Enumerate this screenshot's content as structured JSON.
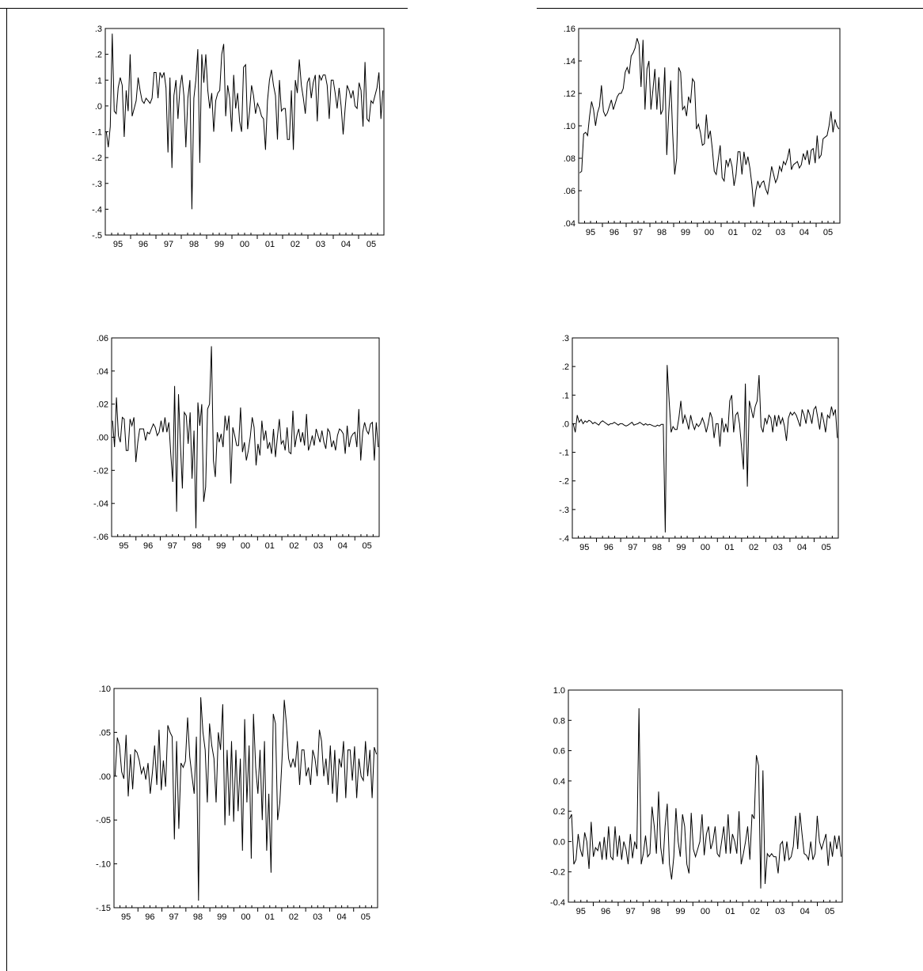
{
  "chart_data": [
    {
      "type": "line",
      "title": "",
      "xlabel": "",
      "ylabel": "",
      "ylim": [
        -0.5,
        0.3
      ],
      "y_ticks": [
        ".3",
        ".2",
        ".1",
        ".0",
        "-.1",
        "-.2",
        "-.3",
        "-.4",
        "-.5"
      ],
      "y_tick_values": [
        0.3,
        0.2,
        0.1,
        0.0,
        -0.1,
        -0.2,
        -0.3,
        -0.4,
        -0.5
      ],
      "x_labels": [
        "95",
        "96",
        "97",
        "98",
        "99",
        "00",
        "01",
        "02",
        "03",
        "04",
        "05"
      ],
      "series": [
        {
          "values": [
            -0.1,
            -0.16,
            -0.08,
            0.28,
            -0.02,
            -0.03,
            0.07,
            0.11,
            0.08,
            -0.12,
            0.06,
            -0.02,
            0.2,
            -0.04,
            -0.01,
            0.02,
            0.11,
            0.06,
            0.02,
            0.01,
            0.03,
            0.02,
            0.01,
            0.03,
            0.13,
            0.13,
            0.03,
            0.13,
            0.11,
            0.13,
            0.07,
            -0.18,
            0.11,
            -0.24,
            0.04,
            0.1,
            -0.05,
            0.07,
            0.12,
            0.04,
            -0.16,
            0.03,
            0.1,
            -0.4,
            0.03,
            0.1,
            0.22,
            -0.22,
            0.2,
            0.09,
            0.2,
            0.06,
            -0.01,
            0.05,
            -0.1,
            0.02,
            0.05,
            0.06,
            0.2,
            0.24,
            -0.04,
            0.08,
            0.03,
            -0.1,
            0.12,
            -0.01,
            0.05,
            -0.06,
            -0.1,
            0.15,
            0.16,
            -0.09,
            -0.02,
            0.08,
            0.04,
            -0.03,
            0.01,
            -0.01,
            -0.04,
            -0.05,
            -0.17,
            0.02,
            0.1,
            0.14,
            0.08,
            0.04,
            -0.13,
            0.1,
            -0.02,
            -0.01,
            -0.01,
            -0.13,
            -0.13,
            0.06,
            -0.17,
            0.1,
            0.05,
            0.18,
            0.08,
            0.03,
            -0.03,
            0.09,
            0.11,
            0.03,
            0.09,
            0.12,
            -0.06,
            0.12,
            0.1,
            0.12,
            0.12,
            0.08,
            -0.05,
            0.1,
            0.1,
            0.05,
            -0.01,
            0.07,
            0.0,
            -0.11,
            -0.01,
            0.08,
            0.06,
            0.03,
            0.06,
            0.0,
            -0.01,
            0.09,
            0.06,
            -0.08,
            0.17,
            -0.05,
            -0.06,
            0.02,
            0.01,
            0.04,
            0.07,
            0.13,
            -0.05,
            0.06
          ]
        }
      ]
    },
    {
      "type": "line",
      "title": "",
      "xlabel": "",
      "ylabel": "",
      "ylim": [
        0.04,
        0.16
      ],
      "y_ticks": [
        ".16",
        ".14",
        ".12",
        ".10",
        ".08",
        ".06",
        ".04"
      ],
      "y_tick_values": [
        0.16,
        0.14,
        0.12,
        0.1,
        0.08,
        0.06,
        0.04
      ],
      "x_labels": [
        "95",
        "96",
        "97",
        "98",
        "99",
        "00",
        "01",
        "02",
        "03",
        "04",
        "05"
      ],
      "series": [
        {
          "values": [
            0.071,
            0.072,
            0.095,
            0.096,
            0.094,
            0.106,
            0.115,
            0.11,
            0.1,
            0.108,
            0.112,
            0.125,
            0.109,
            0.106,
            0.108,
            0.112,
            0.116,
            0.11,
            0.114,
            0.118,
            0.12,
            0.12,
            0.123,
            0.133,
            0.136,
            0.132,
            0.143,
            0.145,
            0.148,
            0.154,
            0.15,
            0.124,
            0.153,
            0.11,
            0.135,
            0.14,
            0.11,
            0.122,
            0.135,
            0.11,
            0.13,
            0.107,
            0.11,
            0.136,
            0.082,
            0.108,
            0.128,
            0.095,
            0.07,
            0.08,
            0.136,
            0.133,
            0.11,
            0.112,
            0.106,
            0.118,
            0.114,
            0.129,
            0.127,
            0.098,
            0.101,
            0.096,
            0.088,
            0.089,
            0.107,
            0.092,
            0.097,
            0.086,
            0.072,
            0.07,
            0.079,
            0.088,
            0.068,
            0.066,
            0.079,
            0.075,
            0.08,
            0.075,
            0.063,
            0.07,
            0.084,
            0.084,
            0.07,
            0.084,
            0.076,
            0.081,
            0.074,
            0.064,
            0.05,
            0.06,
            0.066,
            0.062,
            0.065,
            0.066,
            0.061,
            0.058,
            0.066,
            0.075,
            0.07,
            0.065,
            0.068,
            0.075,
            0.072,
            0.078,
            0.076,
            0.08,
            0.086,
            0.073,
            0.076,
            0.077,
            0.078,
            0.074,
            0.076,
            0.083,
            0.079,
            0.085,
            0.076,
            0.085,
            0.086,
            0.077,
            0.094,
            0.08,
            0.082,
            0.092,
            0.093,
            0.094,
            0.1,
            0.109,
            0.096,
            0.104,
            0.1,
            0.098
          ]
        }
      ]
    },
    {
      "type": "line",
      "title": "",
      "xlabel": "",
      "ylabel": "",
      "ylim": [
        -0.06,
        0.06
      ],
      "y_ticks": [
        ".06",
        ".04",
        ".02",
        ".00",
        "-.02",
        "-.04",
        "-.06"
      ],
      "y_tick_values": [
        0.06,
        0.04,
        0.02,
        0.0,
        -0.02,
        -0.04,
        -0.06
      ],
      "x_labels": [
        "95",
        "96",
        "97",
        "98",
        "99",
        "00",
        "01",
        "02",
        "03",
        "04",
        "05"
      ],
      "series": [
        {
          "values": [
            0.01,
            -0.006,
            0.024,
            0.001,
            -0.003,
            0.012,
            0.011,
            -0.008,
            -0.008,
            0.011,
            0.007,
            0.012,
            -0.015,
            -0.003,
            0.005,
            0.005,
            0.005,
            -0.002,
            0.003,
            0.002,
            0.005,
            0.008,
            0.006,
            0.001,
            0.003,
            0.01,
            0.003,
            0.012,
            0.003,
            0.009,
            -0.01,
            -0.027,
            0.031,
            -0.045,
            0.026,
            -0.004,
            -0.031,
            0.015,
            0.013,
            -0.004,
            0.015,
            -0.025,
            0.004,
            -0.055,
            0.021,
            0.007,
            0.02,
            -0.039,
            -0.03,
            0.017,
            0.02,
            0.055,
            -0.014,
            -0.024,
            0.003,
            -0.003,
            0.002,
            -0.006,
            0.013,
            0.004,
            0.013,
            -0.028,
            0.006,
            0.001,
            -0.005,
            -0.005,
            0.018,
            -0.009,
            -0.003,
            -0.014,
            -0.008,
            0.0,
            0.012,
            0.006,
            -0.017,
            -0.004,
            -0.011,
            0.01,
            -0.002,
            0.004,
            -0.007,
            -0.003,
            -0.01,
            0.005,
            -0.012,
            0.0,
            0.011,
            -0.004,
            -0.002,
            -0.008,
            0.006,
            -0.009,
            -0.01,
            0.016,
            -0.006,
            0.001,
            0.005,
            -0.003,
            0.003,
            -0.005,
            0.014,
            -0.008,
            -0.004,
            0.001,
            -0.005,
            0.005,
            0.001,
            -0.003,
            0.004,
            -0.003,
            -0.007,
            0.005,
            0.003,
            -0.006,
            -0.002,
            -0.008,
            0.001,
            0.005,
            0.004,
            0.002,
            -0.01,
            0.007,
            -0.006,
            0.0,
            0.002,
            0.003,
            -0.006,
            0.017,
            -0.014,
            0.003,
            0.009,
            0.004,
            0.002,
            0.008,
            0.009,
            -0.014,
            0.009,
            -0.006
          ]
        }
      ]
    },
    {
      "type": "line",
      "title": "",
      "xlabel": "",
      "ylabel": "",
      "ylim": [
        -0.4,
        0.3
      ],
      "y_ticks": [
        ".3",
        ".2",
        ".1",
        ".0",
        "-.1",
        "-.2",
        "-.3",
        "-.4"
      ],
      "y_tick_values": [
        0.3,
        0.2,
        0.1,
        0.0,
        -0.1,
        -0.2,
        -0.3,
        -0.4
      ],
      "x_labels": [
        "95",
        "96",
        "97",
        "98",
        "99",
        "00",
        "01",
        "02",
        "03",
        "04",
        "05"
      ],
      "series": [
        {
          "values": [
            0.0,
            -0.03,
            0.03,
            0.005,
            0.015,
            0.0,
            0.01,
            0.005,
            0.012,
            0.008,
            0.0,
            0.005,
            0.0,
            -0.005,
            0.005,
            0.01,
            0.005,
            0.0,
            -0.005,
            0.0,
            0.0,
            0.005,
            0.0,
            -0.005,
            0.0,
            0.0,
            -0.005,
            -0.008,
            -0.005,
            0.0,
            0.005,
            -0.005,
            -0.002,
            0.0,
            0.005,
            0.0,
            -0.005,
            0.0,
            -0.005,
            -0.002,
            -0.005,
            -0.008,
            -0.01,
            -0.005,
            -0.008,
            -0.002,
            -0.002,
            -0.38,
            0.205,
            0.08,
            -0.03,
            -0.01,
            -0.02,
            -0.02,
            0.02,
            0.08,
            0.0,
            0.03,
            0.01,
            -0.02,
            0.03,
            0.0,
            -0.02,
            0.0,
            -0.01,
            0.0,
            0.02,
            0.0,
            -0.03,
            0.0,
            0.04,
            0.02,
            -0.05,
            0.0,
            0.0,
            -0.08,
            0.02,
            -0.03,
            0.0,
            -0.03,
            0.08,
            0.1,
            -0.03,
            0.03,
            0.04,
            0.0,
            -0.08,
            -0.16,
            0.14,
            -0.22,
            0.08,
            0.05,
            0.02,
            0.06,
            0.08,
            0.17,
            -0.01,
            -0.03,
            0.02,
            0.0,
            0.03,
            0.02,
            -0.03,
            0.03,
            -0.01,
            0.03,
            0.0,
            0.02,
            -0.01,
            -0.06,
            0.02,
            0.04,
            0.03,
            0.04,
            0.03,
            0.01,
            -0.01,
            0.05,
            0.03,
            0.0,
            0.05,
            0.03,
            0.0,
            0.05,
            0.06,
            0.02,
            -0.02,
            0.04,
            0.01,
            -0.03,
            0.03,
            0.02,
            0.06,
            0.03,
            0.05,
            -0.05
          ]
        }
      ]
    },
    {
      "type": "line",
      "title": "",
      "xlabel": "",
      "ylabel": "",
      "ylim": [
        -0.15,
        0.1
      ],
      "y_ticks": [
        ".10",
        ".05",
        ".00",
        "-.05",
        "-.10",
        "-.15"
      ],
      "y_tick_values": [
        0.1,
        0.05,
        0.0,
        -0.05,
        -0.1,
        -0.15
      ],
      "x_labels": [
        "95",
        "96",
        "97",
        "98",
        "99",
        "00",
        "01",
        "02",
        "03",
        "04",
        "05"
      ],
      "series": [
        {
          "values": [
            0.0,
            0.044,
            0.035,
            0.005,
            -0.003,
            0.047,
            -0.023,
            0.025,
            -0.015,
            0.03,
            0.027,
            0.018,
            0.003,
            0.01,
            -0.004,
            0.015,
            -0.02,
            0.005,
            0.035,
            -0.01,
            0.053,
            -0.016,
            0.018,
            -0.012,
            0.058,
            0.05,
            0.045,
            -0.072,
            0.04,
            -0.06,
            0.015,
            0.01,
            0.017,
            0.067,
            0.022,
            0.0,
            -0.02,
            0.045,
            -0.142,
            0.09,
            0.05,
            0.03,
            -0.03,
            0.06,
            0.035,
            0.02,
            -0.03,
            0.05,
            0.03,
            0.082,
            -0.056,
            0.03,
            -0.045,
            0.04,
            -0.052,
            0.03,
            -0.04,
            0.02,
            -0.085,
            0.065,
            -0.03,
            0.035,
            -0.094,
            0.071,
            0.01,
            -0.02,
            0.03,
            -0.05,
            0.04,
            -0.085,
            -0.02,
            -0.11,
            0.071,
            0.06,
            -0.05,
            -0.03,
            0.02,
            0.087,
            0.06,
            0.02,
            0.01,
            0.02,
            0.01,
            0.04,
            -0.01,
            0.03,
            0.03,
            0.0,
            0.01,
            -0.01,
            0.03,
            0.02,
            0.0,
            0.053,
            0.04,
            0.0,
            0.02,
            -0.01,
            0.035,
            -0.02,
            0.03,
            -0.03,
            0.02,
            0.01,
            0.04,
            -0.025,
            0.03,
            0.03,
            -0.005,
            0.034,
            -0.025,
            0.02,
            0.0,
            -0.005,
            0.04,
            0.0,
            0.03,
            -0.025,
            0.033,
            0.025
          ]
        }
      ]
    },
    {
      "type": "line",
      "title": "",
      "xlabel": "",
      "ylabel": "",
      "ylim": [
        -0.4,
        1.0
      ],
      "y_ticks": [
        "1.0",
        "0.8",
        "0.6",
        "0.4",
        "0.2",
        "0.0",
        "-0.2",
        "-0.4"
      ],
      "y_tick_values": [
        1.0,
        0.8,
        0.6,
        0.4,
        0.2,
        0.0,
        -0.2,
        -0.4
      ],
      "x_labels": [
        "95",
        "96",
        "97",
        "98",
        "99",
        "00",
        "01",
        "02",
        "03",
        "04",
        "05"
      ],
      "series": [
        {
          "values": [
            0.15,
            0.18,
            -0.15,
            -0.12,
            0.05,
            -0.05,
            -0.1,
            0.06,
            0.0,
            -0.18,
            0.13,
            -0.1,
            -0.04,
            -0.06,
            0.0,
            -0.12,
            0.03,
            -0.12,
            0.1,
            -0.1,
            -0.12,
            0.1,
            -0.1,
            0.04,
            -0.12,
            0.0,
            -0.05,
            -0.15,
            0.05,
            -0.11,
            0.0,
            -0.05,
            0.88,
            -0.15,
            -0.08,
            0.04,
            -0.1,
            -0.08,
            0.23,
            0.1,
            -0.08,
            0.33,
            -0.04,
            -0.15,
            0.1,
            0.25,
            -0.15,
            -0.25,
            -0.1,
            0.22,
            0.0,
            -0.1,
            0.18,
            0.1,
            -0.15,
            -0.21,
            0.19,
            -0.05,
            -0.1,
            -0.05,
            0.0,
            0.18,
            -0.09,
            0.05,
            0.1,
            -0.05,
            0.0,
            0.1,
            -0.08,
            -0.1,
            0.0,
            0.1,
            -0.08,
            0.18,
            -0.08,
            0.05,
            0.0,
            -0.08,
            0.2,
            -0.15,
            -0.08,
            0.0,
            0.1,
            -0.12,
            0.18,
            0.15,
            0.57,
            0.5,
            -0.31,
            0.47,
            -0.28,
            -0.08,
            -0.1,
            -0.08,
            -0.1,
            -0.1,
            -0.21,
            -0.02,
            0.0,
            -0.13,
            0.0,
            -0.12,
            -0.1,
            -0.03,
            0.17,
            -0.05,
            0.19,
            0.05,
            -0.08,
            -0.09,
            -0.12,
            0.0,
            -0.12,
            -0.08,
            0.17,
            0.0,
            -0.05,
            0.0,
            0.05,
            -0.16,
            0.0,
            -0.1,
            0.04,
            -0.05,
            0.04,
            -0.1
          ]
        }
      ]
    }
  ]
}
